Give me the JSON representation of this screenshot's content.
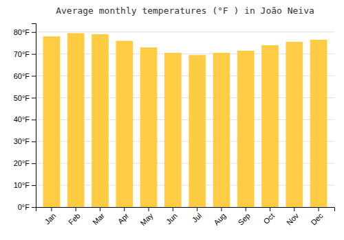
{
  "chart_data": {
    "type": "bar",
    "title": "Average monthly temperatures (°F ) in João Neiva",
    "categories": [
      "Jan",
      "Feb",
      "Mar",
      "Apr",
      "May",
      "Jun",
      "Jul",
      "Aug",
      "Sep",
      "Oct",
      "Nov",
      "Dec"
    ],
    "values": [
      78,
      79.5,
      79,
      76,
      73,
      70.5,
      69.5,
      70.5,
      71.5,
      74,
      75.5,
      76.5
    ],
    "color": "#FFCC44",
    "ylim": [
      0,
      84
    ],
    "yticks": [
      {
        "value": 0,
        "label": "0°F"
      },
      {
        "value": 10,
        "label": "10°F"
      },
      {
        "value": 20,
        "label": "20°F"
      },
      {
        "value": 30,
        "label": "30°F"
      },
      {
        "value": 40,
        "label": "40°F"
      },
      {
        "value": 50,
        "label": "50°F"
      },
      {
        "value": 60,
        "label": "60°F"
      },
      {
        "value": 70,
        "label": "70°F"
      },
      {
        "value": 80,
        "label": "80°F"
      }
    ],
    "grid": true
  }
}
